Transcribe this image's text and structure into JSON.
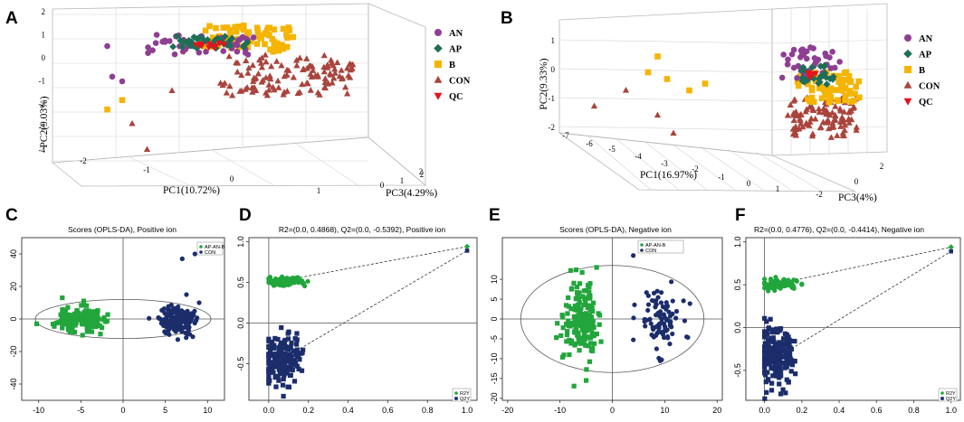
{
  "colors": {
    "AN": "#8e3f92",
    "AP": "#1f6e57",
    "B": "#f5b400",
    "CON": "#a9443c",
    "QC": "#e3141b",
    "green": "#22a63c",
    "navy": "#1b2d6b",
    "grid": "#d4d4d4"
  },
  "chart_data": [
    {
      "id": "A",
      "type": "scatter3d",
      "panel_label": "A",
      "xlabel": "PC1(10.72%)",
      "ylabel": "PC2(9.03%)",
      "zlabel": "PC3(4.29%)",
      "xticks": [
        "-2",
        "-1",
        "0",
        "1",
        "2"
      ],
      "yticks": [
        "2",
        "1",
        "0",
        "-1",
        "-2",
        "-3",
        "-4"
      ],
      "zticks": [
        "0",
        "1",
        "2"
      ],
      "legend": [
        {
          "key": "AN",
          "label": "AN",
          "marker": "circle"
        },
        {
          "key": "AP",
          "label": "AP",
          "marker": "diamond"
        },
        {
          "key": "B",
          "label": "B",
          "marker": "square"
        },
        {
          "key": "CON",
          "label": "CON",
          "marker": "triangle"
        },
        {
          "key": "QC",
          "label": "QC",
          "marker": "triangle-down"
        }
      ],
      "groups": {
        "AN": {
          "n": 45,
          "x": [
            -1.5,
            0.6
          ],
          "y": [
            0.2,
            1.0
          ],
          "extra": [
            [
              -2.2,
              -0.8
            ],
            [
              -2.0,
              -1.0
            ],
            [
              -2.3,
              0.5
            ]
          ]
        },
        "AP": {
          "n": 40,
          "x": [
            -0.9,
            0.6
          ],
          "y": [
            0.4,
            0.9
          ]
        },
        "B": {
          "n": 70,
          "x": [
            -0.3,
            1.4
          ],
          "y": [
            0.3,
            1.4
          ],
          "extra": [
            [
              -2.3,
              -2.2
            ],
            [
              -2.0,
              -1.8
            ]
          ]
        },
        "CON": {
          "n": 120,
          "x": [
            0.0,
            2.6
          ],
          "y": [
            -1.6,
            0.1
          ],
          "extra": [
            [
              -1.8,
              -2.8
            ],
            [
              -1.5,
              -3.9
            ],
            [
              -1.0,
              -1.4
            ]
          ]
        },
        "QC": {
          "n": 12,
          "x": [
            -0.5,
            0.0
          ],
          "y": [
            0.4,
            0.7
          ]
        }
      }
    },
    {
      "id": "B",
      "type": "scatter3d",
      "panel_label": "B",
      "xlabel": "PC1(16.97%)",
      "ylabel": "PC2(9.33%)",
      "zlabel": "PC3(4%)",
      "xticks": [
        "-7",
        "-6",
        "-5",
        "-4",
        "-3",
        "-2",
        "-1",
        "0",
        "1"
      ],
      "yticks": [
        "1",
        "0",
        "-1",
        "-2"
      ],
      "zticks": [
        "-2",
        "0",
        "2"
      ],
      "legend": [
        {
          "key": "AN",
          "label": "AN",
          "marker": "circle"
        },
        {
          "key": "AP",
          "label": "AP",
          "marker": "diamond"
        },
        {
          "key": "B",
          "label": "B",
          "marker": "square"
        },
        {
          "key": "CON",
          "label": "CON",
          "marker": "triangle"
        },
        {
          "key": "QC",
          "label": "QC",
          "marker": "triangle-down"
        }
      ],
      "groups": {
        "AN": {
          "n": 40,
          "x": [
            -0.5,
            1.2
          ],
          "y": [
            0.0,
            1.4
          ]
        },
        "AP": {
          "n": 25,
          "x": [
            0.0,
            1.0
          ],
          "y": [
            -0.2,
            0.6
          ]
        },
        "B": {
          "n": 70,
          "x": [
            0.0,
            1.8
          ],
          "y": [
            -1.0,
            0.3
          ],
          "extra": [
            [
              -4.5,
              1.0
            ],
            [
              -4.8,
              0.3
            ],
            [
              -4.2,
              0.0
            ],
            [
              -3.5,
              -0.5
            ],
            [
              -3.0,
              -0.2
            ]
          ]
        },
        "CON": {
          "n": 110,
          "x": [
            -0.3,
            1.8
          ],
          "y": [
            -2.6,
            -0.8
          ],
          "extra": [
            [
              -6.5,
              -1.2
            ],
            [
              -5.5,
              -0.5
            ],
            [
              -4.5,
              -1.6
            ],
            [
              -4.0,
              -2.4
            ]
          ]
        },
        "QC": {
          "n": 6,
          "x": [
            0.1,
            0.5
          ],
          "y": [
            0.0,
            0.4
          ]
        }
      }
    },
    {
      "id": "C",
      "type": "scatter",
      "panel_label": "C",
      "title": "Scores (OPLS-DA), Positive ion",
      "xlim": [
        -12,
        12
      ],
      "ylim": [
        -50,
        50
      ],
      "xticks": [
        -10,
        -5,
        0,
        5,
        10
      ],
      "yticks": [
        40,
        20,
        0,
        -20,
        -40
      ],
      "legend": [
        {
          "key": "green",
          "label": "AP-AN-B",
          "marker": "circle"
        },
        {
          "key": "navy",
          "label": "CON",
          "marker": "circle"
        }
      ],
      "ellipse": {
        "cx": 0,
        "cy": 0,
        "rx": 10.4,
        "ry": 12
      },
      "groups": {
        "green": {
          "n": 170,
          "marker": "square",
          "cx": -5,
          "cy": 0,
          "sx": 1.3,
          "sy": 3.5,
          "extra": [
            [
              -7.2,
              13
            ],
            [
              -6.5,
              -5
            ]
          ]
        },
        "navy": {
          "n": 180,
          "marker": "circle",
          "cx": 6.5,
          "cy": -1,
          "sx": 1.2,
          "sy": 4.0,
          "extra": [
            [
              8.5,
              40
            ],
            [
              7,
              37
            ],
            [
              7.5,
              15
            ],
            [
              9,
              10
            ]
          ]
        }
      }
    },
    {
      "id": "D",
      "type": "scatter",
      "panel_label": "D",
      "title": "R2=(0.0, 0.4868), Q2=(0.0, -0.5392), Positive ion",
      "xlim": [
        -0.1,
        1.05
      ],
      "ylim": [
        -0.95,
        1.05
      ],
      "xticks": [
        0.0,
        0.2,
        0.4,
        0.6,
        0.8,
        1.0
      ],
      "yticks": [
        1.0,
        0.5,
        0.0,
        -0.5
      ],
      "xtick_labels": [
        "0.0",
        "0.2",
        "0.4",
        "0.6",
        "0.8",
        "1.0"
      ],
      "ytick_labels": [
        "1.0",
        "0.5",
        "0.0",
        "-0.5"
      ],
      "legend": [
        {
          "key": "green",
          "label": "R2Y",
          "marker": "circle"
        },
        {
          "key": "navy",
          "label": "Q2Y",
          "marker": "square"
        }
      ],
      "points_top": {
        "x": 1.0,
        "green": 0.94,
        "navy": 0.89
      },
      "lines": [
        {
          "from": [
            0.0,
            0.49
          ],
          "to": [
            1.0,
            0.94
          ]
        },
        {
          "from": [
            0.0,
            -0.54
          ],
          "to": [
            1.0,
            0.89
          ]
        }
      ],
      "groups": {
        "green": {
          "n": 90,
          "marker": "circle",
          "cx": 0.08,
          "cy": 0.51,
          "sx": 0.05,
          "sy": 0.025,
          "xmin": 0.0,
          "xmax": 0.2
        },
        "navy": {
          "n": 200,
          "marker": "square",
          "cx": 0.06,
          "cy": -0.45,
          "sx": 0.05,
          "sy": 0.15,
          "xmin": 0.0,
          "xmax": 0.2
        }
      }
    },
    {
      "id": "E",
      "type": "scatter",
      "panel_label": "E",
      "title": "Scores (OPLS-DA), Negative ion",
      "xlim": [
        -21,
        21
      ],
      "ylim": [
        -20.5,
        20.5
      ],
      "xticks": [
        -20,
        -10,
        0,
        10,
        20
      ],
      "yticks": [
        10,
        5,
        0,
        -5,
        -10,
        -15,
        -20
      ],
      "legend": [
        {
          "key": "green",
          "label": "AP-AN-B",
          "marker": "circle"
        },
        {
          "key": "navy",
          "label": "CON",
          "marker": "circle"
        }
      ],
      "ellipse": {
        "cx": 0,
        "cy": 0,
        "rx": 17.5,
        "ry": 13.5
      },
      "groups": {
        "green": {
          "n": 170,
          "marker": "square",
          "cx": -6,
          "cy": 0,
          "sx": 1.6,
          "sy": 4.5,
          "extra": [
            [
              -5,
              -15.5
            ],
            [
              -3,
              13
            ]
          ]
        },
        "navy": {
          "n": 90,
          "marker": "circle",
          "cx": 9,
          "cy": 0,
          "sx": 2.0,
          "sy": 4.0,
          "extra": [
            [
              4,
              16
            ]
          ]
        }
      }
    },
    {
      "id": "F",
      "type": "scatter",
      "panel_label": "F",
      "title": "R2=(0.0, 0.4776), Q2=(0.0, -0.4414), Negative ion",
      "xlim": [
        -0.1,
        1.05
      ],
      "ylim": [
        -0.85,
        1.05
      ],
      "xticks": [
        0.0,
        0.2,
        0.4,
        0.6,
        0.8,
        1.0
      ],
      "yticks": [
        1.0,
        0.5,
        0.0,
        -0.5
      ],
      "xtick_labels": [
        "0.0",
        "0.2",
        "0.4",
        "0.6",
        "0.8",
        "1.0"
      ],
      "ytick_labels": [
        "1.0",
        "0.5",
        "0.0",
        "-0.5"
      ],
      "legend": [
        {
          "key": "green",
          "label": "R2Y",
          "marker": "circle"
        },
        {
          "key": "navy",
          "label": "Q2Y",
          "marker": "square"
        }
      ],
      "points_top": {
        "x": 1.0,
        "green": 0.94,
        "navy": 0.89
      },
      "lines": [
        {
          "from": [
            0.0,
            0.48
          ],
          "to": [
            1.0,
            0.94
          ]
        },
        {
          "from": [
            0.0,
            -0.44
          ],
          "to": [
            1.0,
            0.89
          ]
        }
      ],
      "groups": {
        "green": {
          "n": 90,
          "marker": "circle",
          "cx": 0.08,
          "cy": 0.5,
          "sx": 0.05,
          "sy": 0.03,
          "xmin": 0.0,
          "xmax": 0.2
        },
        "navy": {
          "n": 200,
          "marker": "square",
          "cx": 0.06,
          "cy": -0.35,
          "sx": 0.05,
          "sy": 0.16,
          "xmin": 0.0,
          "xmax": 0.2
        }
      }
    }
  ]
}
